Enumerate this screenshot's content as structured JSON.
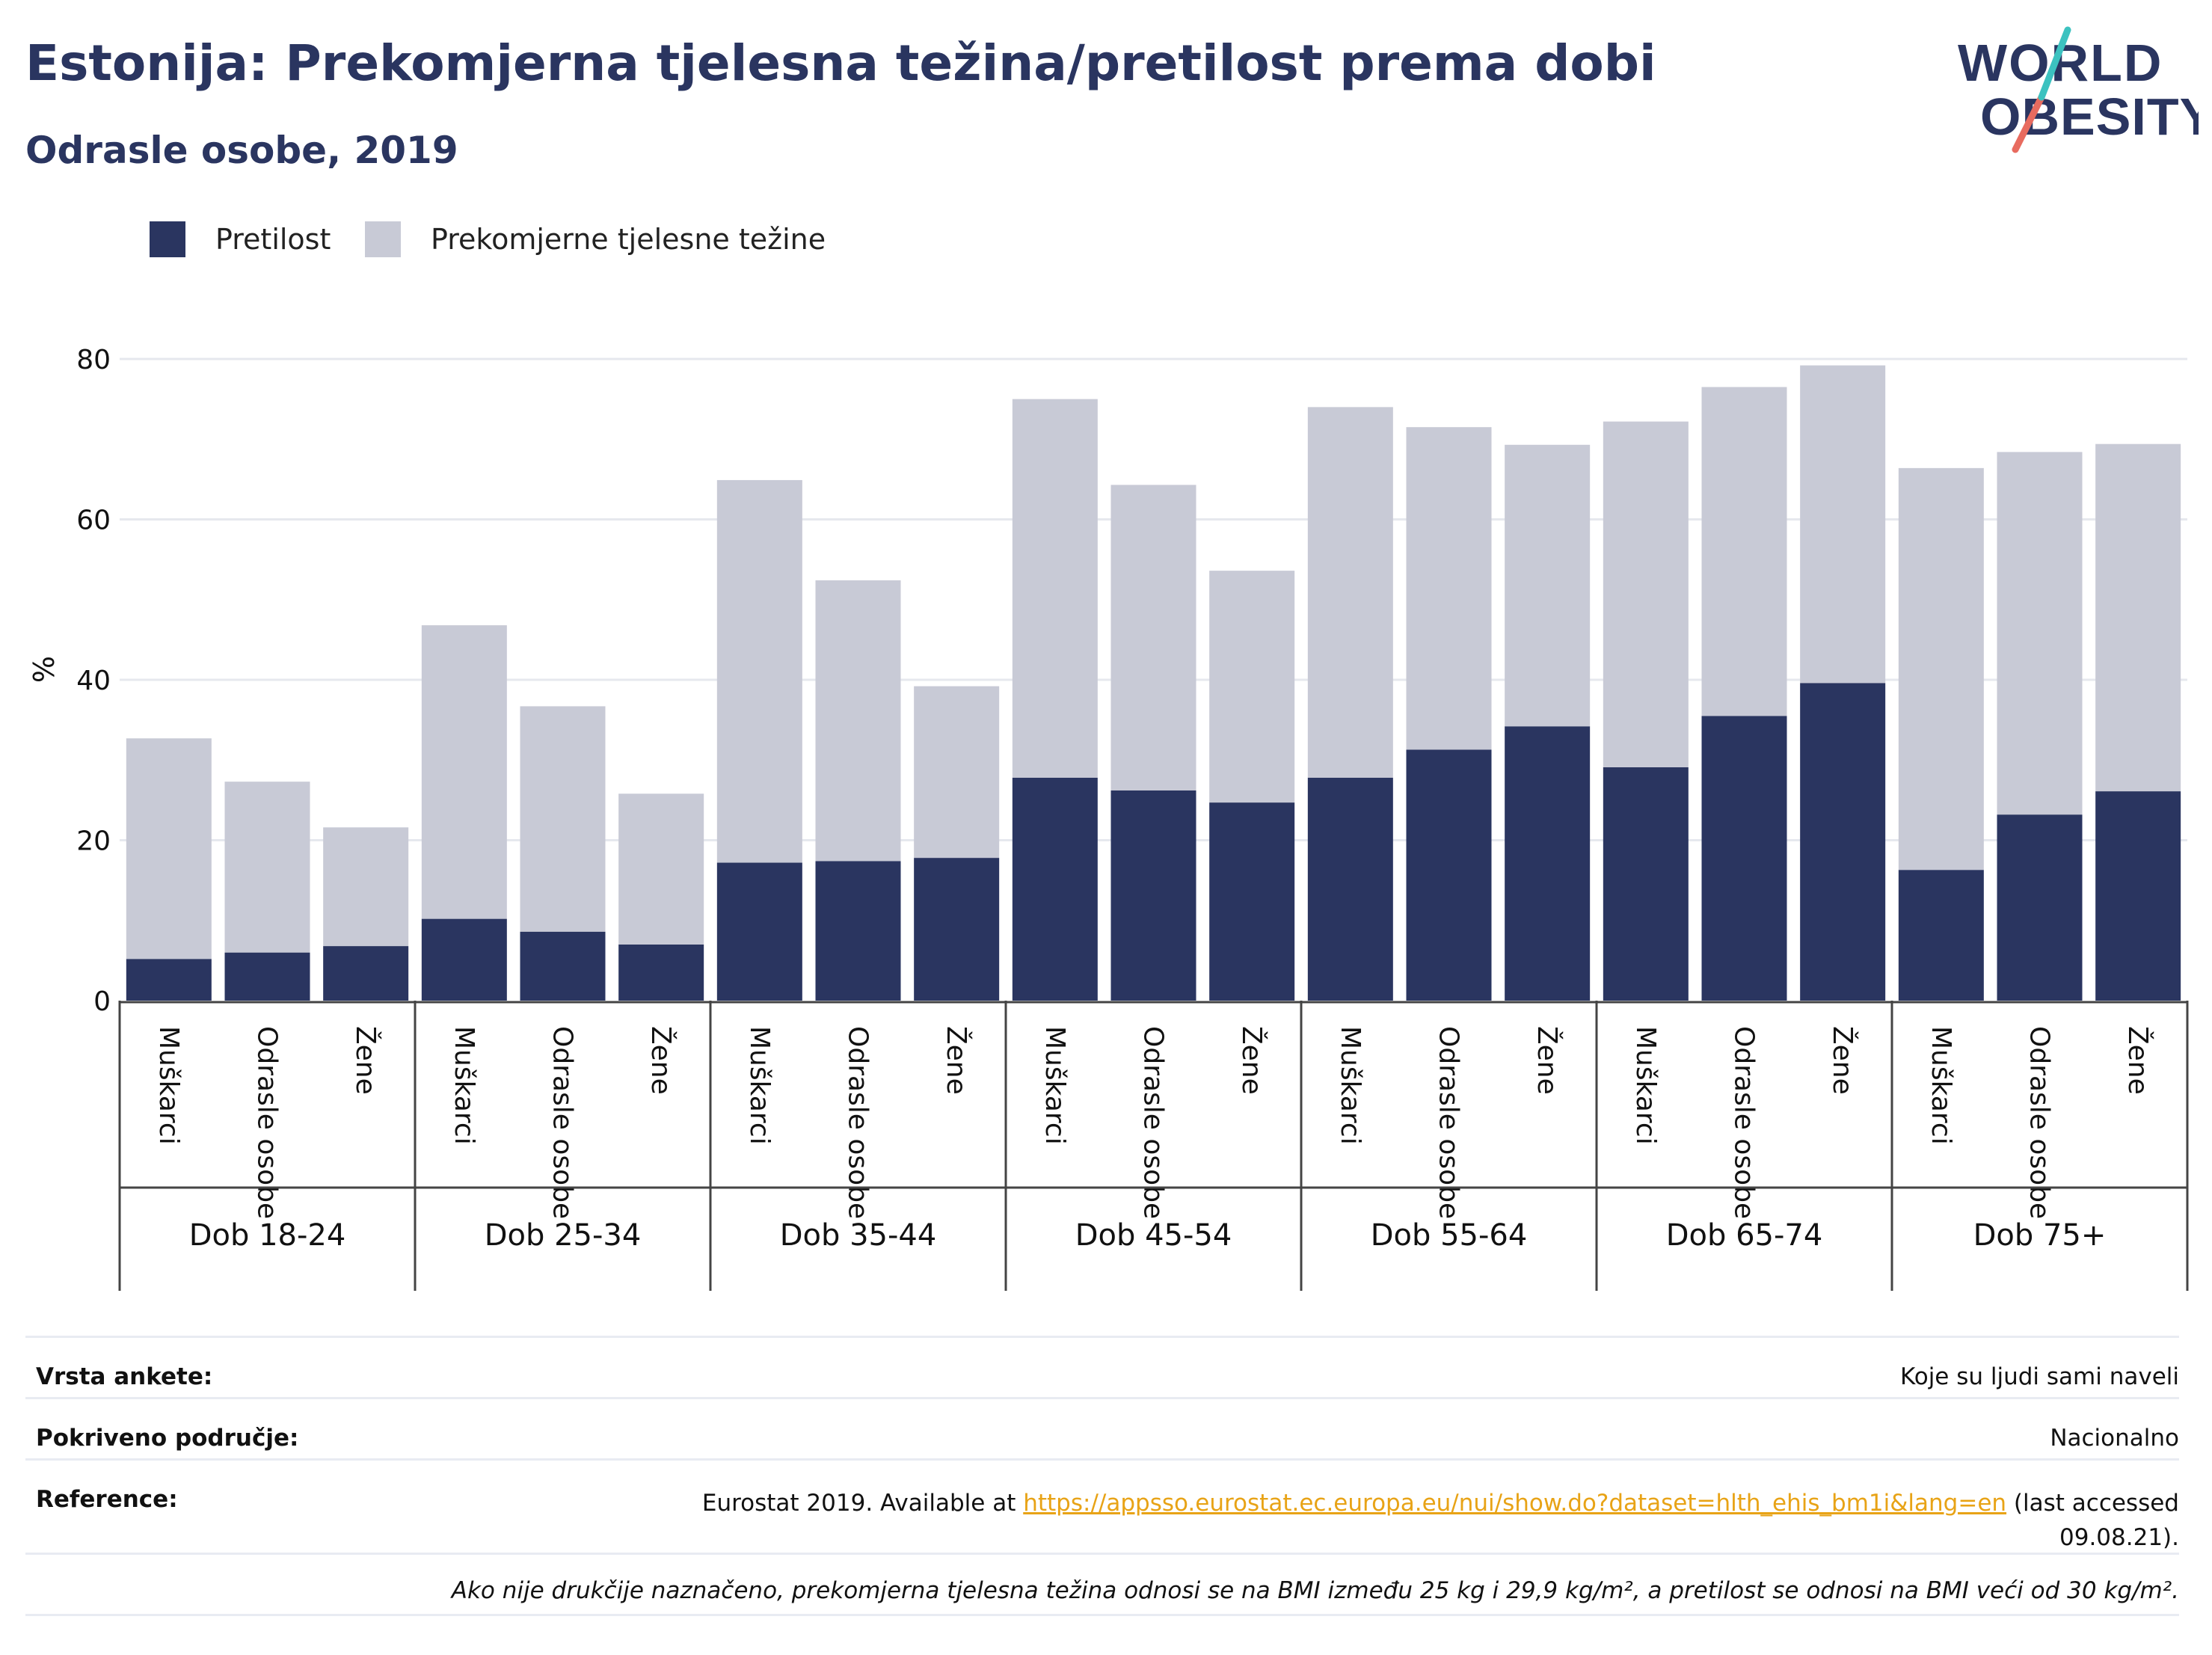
{
  "title": "Estonija: Prekomjerna tjelesna težina/pretilost prema dobi",
  "subtitle": "Odrasle osobe, 2019",
  "logo": {
    "line1": "WORLD",
    "line2": "OBESITY"
  },
  "legend": [
    {
      "label": "Pretilost",
      "color": "#2a3560"
    },
    {
      "label": "Prekomjerne tjelesne težine",
      "color": "#c8cad6"
    }
  ],
  "chart_data": {
    "type": "bar",
    "stacked": true,
    "ylabel": "%",
    "ylim": [
      0,
      80
    ],
    "yticks": [
      0,
      20,
      40,
      60,
      80
    ],
    "grid": true,
    "legend_position": "top-left",
    "groups": [
      "Dob 18-24",
      "Dob 25-34",
      "Dob 35-44",
      "Dob 45-54",
      "Dob 55-64",
      "Dob 65-74",
      "Dob 75+"
    ],
    "subcategories": [
      "Muškarci",
      "Odrasle osobe",
      "Žene"
    ],
    "series": [
      {
        "name": "Pretilost",
        "color": "#2a3560",
        "values": [
          5.2,
          6.0,
          6.8,
          10.2,
          8.6,
          7.0,
          17.2,
          17.4,
          17.8,
          27.8,
          26.2,
          24.7,
          27.8,
          31.3,
          34.2,
          29.1,
          35.5,
          39.6,
          16.3,
          23.2,
          26.1
        ]
      },
      {
        "name": "Prekomjerne tjelesne težine",
        "color": "#c8cad6",
        "values": [
          27.5,
          21.3,
          14.8,
          36.6,
          28.1,
          18.8,
          47.7,
          35.0,
          21.4,
          47.2,
          38.1,
          28.9,
          46.2,
          40.2,
          35.1,
          43.1,
          41.0,
          39.6,
          50.1,
          45.2,
          43.3
        ]
      }
    ]
  },
  "info": {
    "survey_type_label": "Vrsta ankete:",
    "survey_type_value": "Koje su ljudi sami naveli",
    "coverage_label": "Pokriveno područje:",
    "coverage_value": "Nacionalno",
    "reference_label": "Reference:",
    "reference_prefix": "Eurostat 2019. Available at ",
    "reference_link": "https://appsso.eurostat.ec.europa.eu/nui/show.do?dataset=hlth_ehis_bm1i&lang=en",
    "reference_suffix": " (last accessed 09.08.21).",
    "note": "Ako nije drukčije naznačeno, prekomjerna tjelesna težina odnosi se na BMI između 25 kg i 29,9 kg/m², a pretilost se odnosi na BMI veći od 30 kg/m²."
  }
}
